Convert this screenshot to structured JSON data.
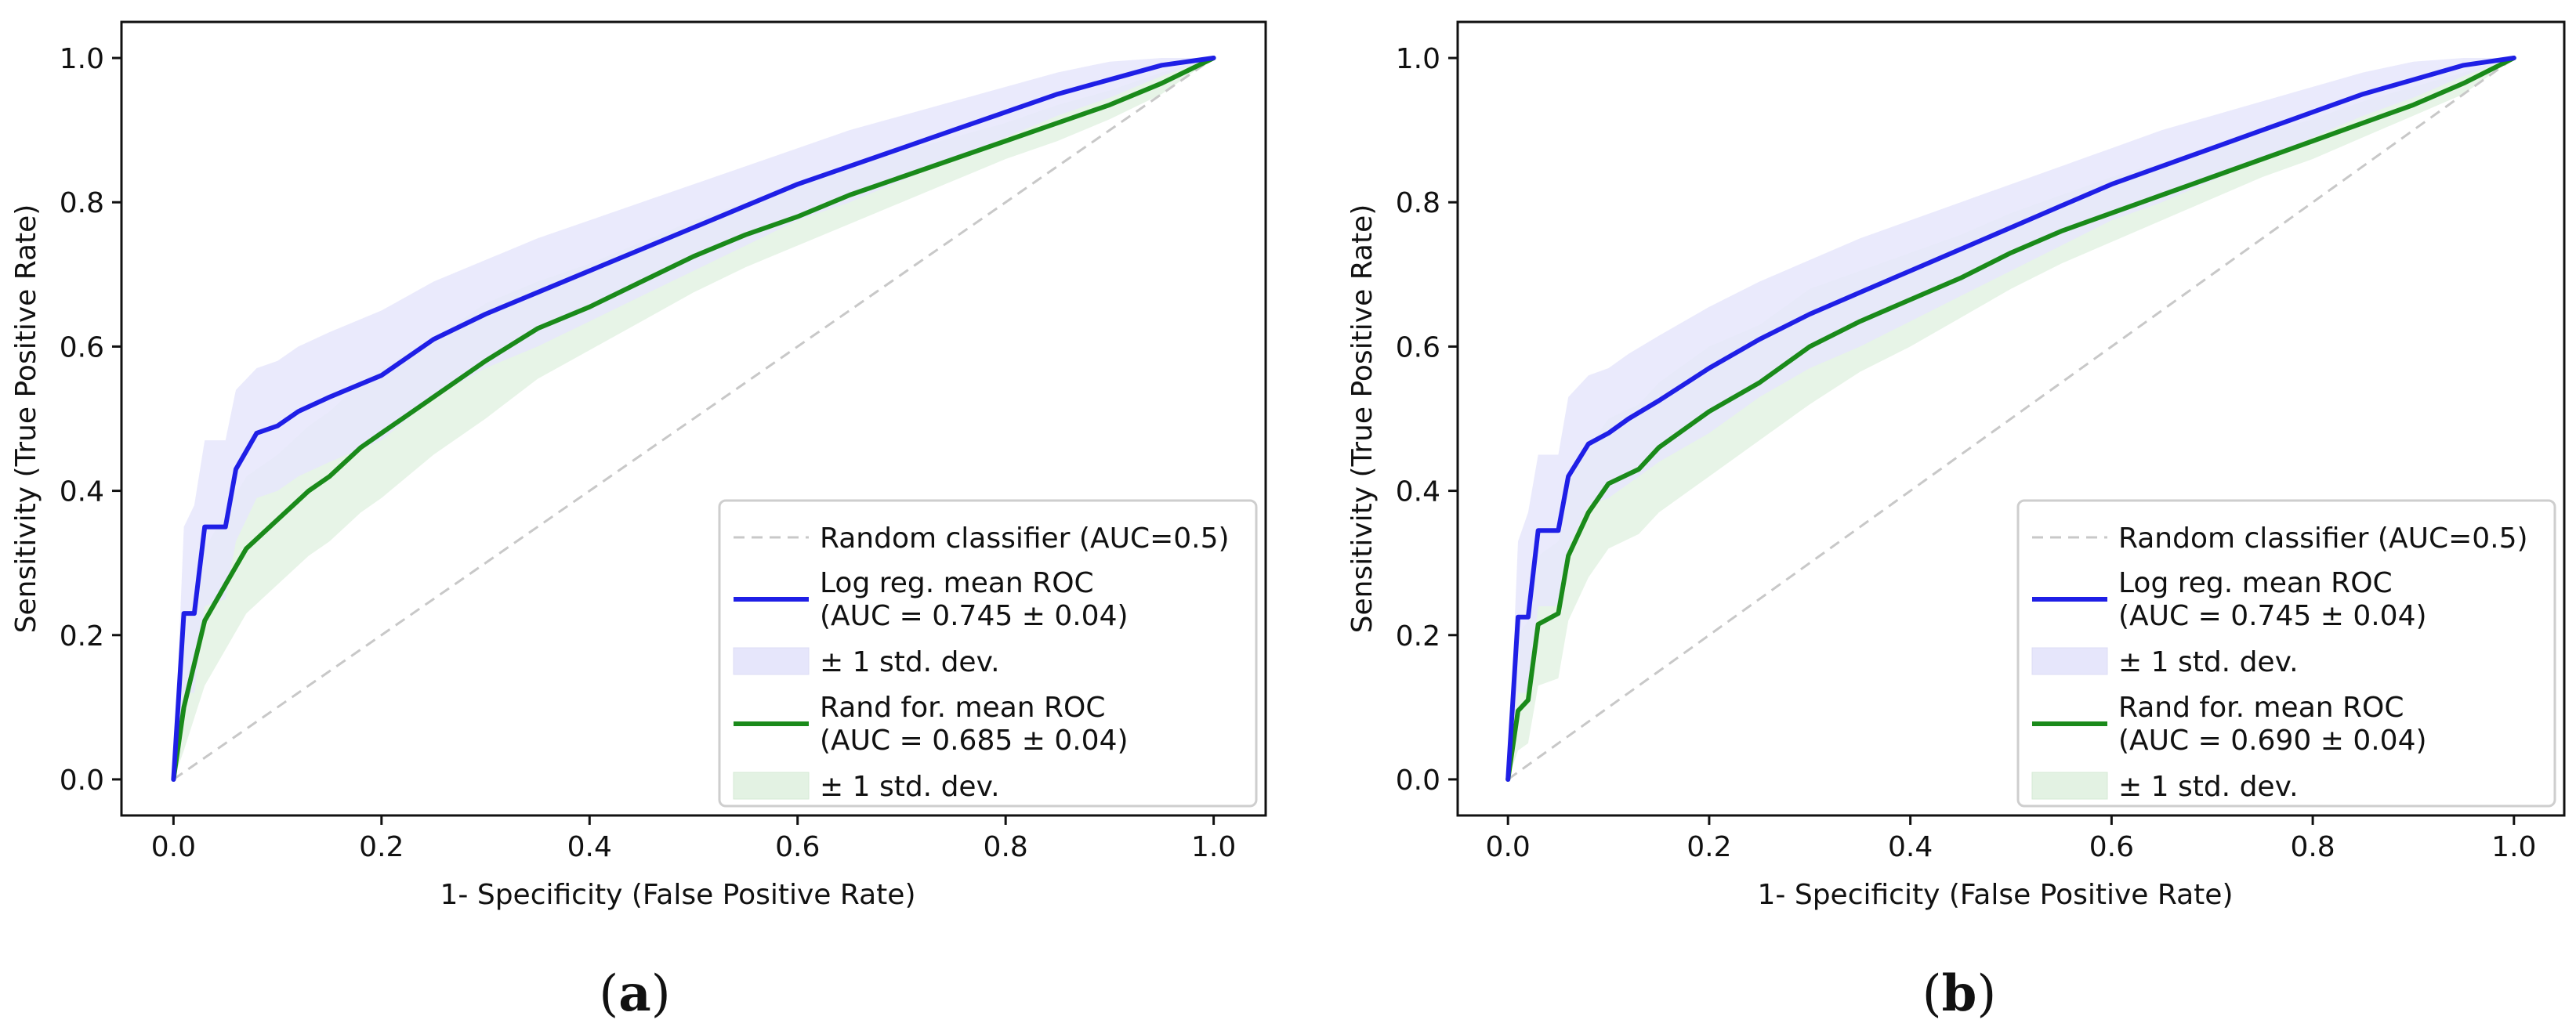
{
  "colors": {
    "log_reg": "#1f1fe6",
    "log_reg_band": "#e6e6fb",
    "rand_for": "#1a8a1a",
    "rand_for_band": "#e3f2e3",
    "random": "#c8c8c8"
  },
  "chart_data": [
    {
      "type": "line",
      "panel": "(a)",
      "panel_letter": "a",
      "title": "",
      "xlabel": "1- Specificity (False Positive Rate)",
      "ylabel": "Sensitivity (True Positive Rate)",
      "xlim": [
        -0.05,
        1.05
      ],
      "ylim": [
        -0.05,
        1.05
      ],
      "xticks": [
        "0.0",
        "0.2",
        "0.4",
        "0.6",
        "0.8",
        "1.0"
      ],
      "yticks": [
        "0.0",
        "0.2",
        "0.4",
        "0.6",
        "0.8",
        "1.0"
      ],
      "grid": false,
      "legend_position": "lower-right",
      "legend": {
        "random_label": "Random classifier (AUC=0.5)",
        "log_reg_label_1": "Log reg. mean ROC",
        "log_reg_label_2": "(AUC = 0.745 ± 0.04)",
        "log_reg_std": "± 1 std. dev.",
        "rand_for_label_1": "Rand for. mean ROC",
        "rand_for_label_2": "(AUC = 0.685 ± 0.04)",
        "rand_for_std": "± 1 std. dev."
      },
      "series": [
        {
          "name": "Log reg. mean ROC",
          "auc": 0.745,
          "std": 0.04,
          "x": [
            0.0,
            0.01,
            0.02,
            0.03,
            0.05,
            0.06,
            0.08,
            0.1,
            0.12,
            0.15,
            0.2,
            0.25,
            0.3,
            0.35,
            0.4,
            0.45,
            0.5,
            0.55,
            0.6,
            0.65,
            0.7,
            0.75,
            0.8,
            0.85,
            0.9,
            0.95,
            1.0
          ],
          "y": [
            0.0,
            0.23,
            0.23,
            0.35,
            0.35,
            0.43,
            0.48,
            0.49,
            0.51,
            0.53,
            0.56,
            0.61,
            0.645,
            0.675,
            0.705,
            0.735,
            0.765,
            0.795,
            0.825,
            0.85,
            0.875,
            0.9,
            0.925,
            0.95,
            0.97,
            0.99,
            1.0
          ],
          "upper": [
            0.0,
            0.35,
            0.38,
            0.47,
            0.47,
            0.54,
            0.57,
            0.58,
            0.6,
            0.62,
            0.65,
            0.69,
            0.72,
            0.75,
            0.775,
            0.8,
            0.825,
            0.85,
            0.875,
            0.9,
            0.92,
            0.94,
            0.96,
            0.98,
            0.995,
            1.0,
            1.0
          ],
          "lower": [
            0.0,
            0.12,
            0.12,
            0.24,
            0.25,
            0.33,
            0.39,
            0.4,
            0.42,
            0.44,
            0.47,
            0.53,
            0.57,
            0.6,
            0.635,
            0.67,
            0.705,
            0.74,
            0.775,
            0.8,
            0.83,
            0.86,
            0.89,
            0.92,
            0.945,
            0.975,
            1.0
          ]
        },
        {
          "name": "Rand for. mean ROC",
          "auc": 0.685,
          "std": 0.04,
          "x": [
            0.0,
            0.01,
            0.03,
            0.05,
            0.07,
            0.1,
            0.13,
            0.15,
            0.18,
            0.2,
            0.25,
            0.3,
            0.35,
            0.4,
            0.45,
            0.5,
            0.55,
            0.6,
            0.65,
            0.7,
            0.75,
            0.8,
            0.85,
            0.9,
            0.95,
            1.0
          ],
          "y": [
            0.0,
            0.1,
            0.22,
            0.27,
            0.32,
            0.36,
            0.4,
            0.42,
            0.46,
            0.48,
            0.53,
            0.58,
            0.625,
            0.655,
            0.69,
            0.725,
            0.755,
            0.78,
            0.81,
            0.835,
            0.86,
            0.885,
            0.91,
            0.935,
            0.965,
            1.0
          ],
          "upper": [
            0.0,
            0.2,
            0.32,
            0.37,
            0.42,
            0.45,
            0.49,
            0.51,
            0.55,
            0.57,
            0.61,
            0.66,
            0.69,
            0.715,
            0.745,
            0.775,
            0.8,
            0.825,
            0.85,
            0.87,
            0.89,
            0.91,
            0.935,
            0.955,
            0.98,
            1.0
          ],
          "lower": [
            0.0,
            0.04,
            0.13,
            0.18,
            0.23,
            0.27,
            0.31,
            0.33,
            0.37,
            0.39,
            0.45,
            0.5,
            0.555,
            0.595,
            0.635,
            0.675,
            0.71,
            0.74,
            0.77,
            0.8,
            0.83,
            0.86,
            0.885,
            0.915,
            0.95,
            1.0
          ]
        },
        {
          "name": "Random classifier (AUC=0.5)",
          "x": [
            0.0,
            1.0
          ],
          "y": [
            0.0,
            1.0
          ]
        }
      ]
    },
    {
      "type": "line",
      "panel": "(b)",
      "panel_letter": "b",
      "title": "",
      "xlabel": "1- Specificity (False Positive Rate)",
      "ylabel": "Sensitivity (True Positive Rate)",
      "xlim": [
        -0.05,
        1.05
      ],
      "ylim": [
        -0.05,
        1.05
      ],
      "xticks": [
        "0.0",
        "0.2",
        "0.4",
        "0.6",
        "0.8",
        "1.0"
      ],
      "yticks": [
        "0.0",
        "0.2",
        "0.4",
        "0.6",
        "0.8",
        "1.0"
      ],
      "grid": false,
      "legend_position": "lower-right",
      "legend": {
        "random_label": "Random classifier (AUC=0.5)",
        "log_reg_label_1": "Log reg. mean ROC",
        "log_reg_label_2": "(AUC = 0.745 ± 0.04)",
        "log_reg_std": "± 1 std. dev.",
        "rand_for_label_1": "Rand for. mean ROC",
        "rand_for_label_2": "(AUC = 0.690 ± 0.04)",
        "rand_for_std": "± 1 std. dev."
      },
      "series": [
        {
          "name": "Log reg. mean ROC",
          "auc": 0.745,
          "std": 0.04,
          "x": [
            0.0,
            0.01,
            0.02,
            0.03,
            0.05,
            0.06,
            0.08,
            0.1,
            0.12,
            0.15,
            0.2,
            0.25,
            0.3,
            0.35,
            0.4,
            0.45,
            0.5,
            0.55,
            0.6,
            0.65,
            0.7,
            0.75,
            0.8,
            0.85,
            0.9,
            0.95,
            1.0
          ],
          "y": [
            0.0,
            0.225,
            0.225,
            0.345,
            0.345,
            0.42,
            0.465,
            0.48,
            0.5,
            0.525,
            0.57,
            0.61,
            0.645,
            0.675,
            0.705,
            0.735,
            0.765,
            0.795,
            0.825,
            0.85,
            0.875,
            0.9,
            0.925,
            0.95,
            0.97,
            0.99,
            1.0
          ],
          "upper": [
            0.0,
            0.33,
            0.37,
            0.45,
            0.45,
            0.53,
            0.56,
            0.57,
            0.59,
            0.615,
            0.655,
            0.69,
            0.72,
            0.75,
            0.775,
            0.8,
            0.825,
            0.85,
            0.875,
            0.9,
            0.92,
            0.94,
            0.96,
            0.98,
            0.995,
            1.0,
            1.0
          ],
          "lower": [
            0.0,
            0.12,
            0.12,
            0.24,
            0.24,
            0.32,
            0.38,
            0.39,
            0.41,
            0.44,
            0.48,
            0.53,
            0.57,
            0.6,
            0.635,
            0.67,
            0.705,
            0.74,
            0.775,
            0.8,
            0.83,
            0.86,
            0.89,
            0.92,
            0.945,
            0.975,
            1.0
          ]
        },
        {
          "name": "Rand for. mean ROC",
          "auc": 0.69,
          "std": 0.04,
          "x": [
            0.0,
            0.01,
            0.02,
            0.03,
            0.05,
            0.06,
            0.08,
            0.1,
            0.13,
            0.15,
            0.18,
            0.2,
            0.25,
            0.3,
            0.35,
            0.4,
            0.45,
            0.5,
            0.55,
            0.6,
            0.65,
            0.7,
            0.75,
            0.8,
            0.85,
            0.9,
            0.95,
            1.0
          ],
          "y": [
            0.0,
            0.095,
            0.11,
            0.215,
            0.23,
            0.31,
            0.37,
            0.41,
            0.43,
            0.46,
            0.49,
            0.51,
            0.55,
            0.6,
            0.635,
            0.665,
            0.695,
            0.73,
            0.76,
            0.785,
            0.81,
            0.835,
            0.86,
            0.885,
            0.91,
            0.935,
            0.965,
            1.0
          ],
          "upper": [
            0.0,
            0.2,
            0.22,
            0.31,
            0.33,
            0.41,
            0.46,
            0.5,
            0.52,
            0.55,
            0.58,
            0.6,
            0.63,
            0.68,
            0.705,
            0.73,
            0.755,
            0.785,
            0.81,
            0.835,
            0.855,
            0.875,
            0.895,
            0.915,
            0.94,
            0.96,
            0.98,
            1.0
          ],
          "lower": [
            0.0,
            0.04,
            0.05,
            0.13,
            0.14,
            0.22,
            0.28,
            0.32,
            0.34,
            0.37,
            0.4,
            0.42,
            0.47,
            0.52,
            0.565,
            0.6,
            0.64,
            0.68,
            0.715,
            0.745,
            0.775,
            0.805,
            0.835,
            0.86,
            0.89,
            0.92,
            0.95,
            1.0
          ]
        },
        {
          "name": "Random classifier (AUC=0.5)",
          "x": [
            0.0,
            1.0
          ],
          "y": [
            0.0,
            1.0
          ]
        }
      ]
    }
  ]
}
